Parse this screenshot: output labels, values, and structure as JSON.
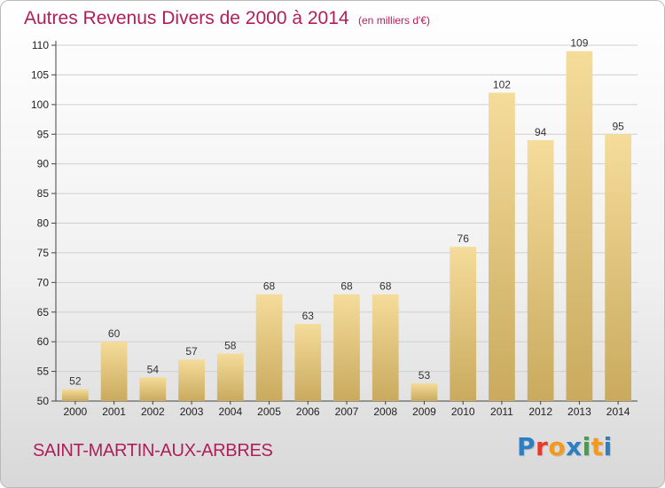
{
  "header": {
    "title": "Autres Revenus Divers de 2000 à 2014",
    "unit": "(en milliers d'€)"
  },
  "footer": {
    "commune": "SAINT-MARTIN-AUX-ARBRES",
    "logo": {
      "letters": [
        "P",
        "r",
        "o",
        "x",
        "i",
        "t",
        "i"
      ],
      "colors": [
        "#2e7fc1",
        "#e8392c",
        "#f39a1d",
        "#2e7fc1",
        "#43a047",
        "#f39a1d",
        "#2e7fc1"
      ]
    }
  },
  "colors": {
    "title": "#b01e5a",
    "bar_light": "#f5dc9a",
    "bar_dark": "#c9aa5e"
  },
  "chart_data": {
    "type": "bar",
    "title": "Autres Revenus Divers de 2000 à 2014",
    "subtitle": "(en milliers d'€)",
    "xlabel": "",
    "ylabel": "",
    "categories": [
      "2000",
      "2001",
      "2002",
      "2003",
      "2004",
      "2005",
      "2006",
      "2007",
      "2008",
      "2009",
      "2010",
      "2011",
      "2012",
      "2013",
      "2014"
    ],
    "values": [
      52,
      60,
      54,
      57,
      58,
      68,
      63,
      68,
      68,
      53,
      76,
      102,
      94,
      109,
      95
    ],
    "ylim": [
      50,
      110
    ],
    "yticks": [
      50,
      55,
      60,
      65,
      70,
      75,
      80,
      85,
      90,
      95,
      100,
      105,
      110
    ],
    "grid": true,
    "legend": "none"
  }
}
